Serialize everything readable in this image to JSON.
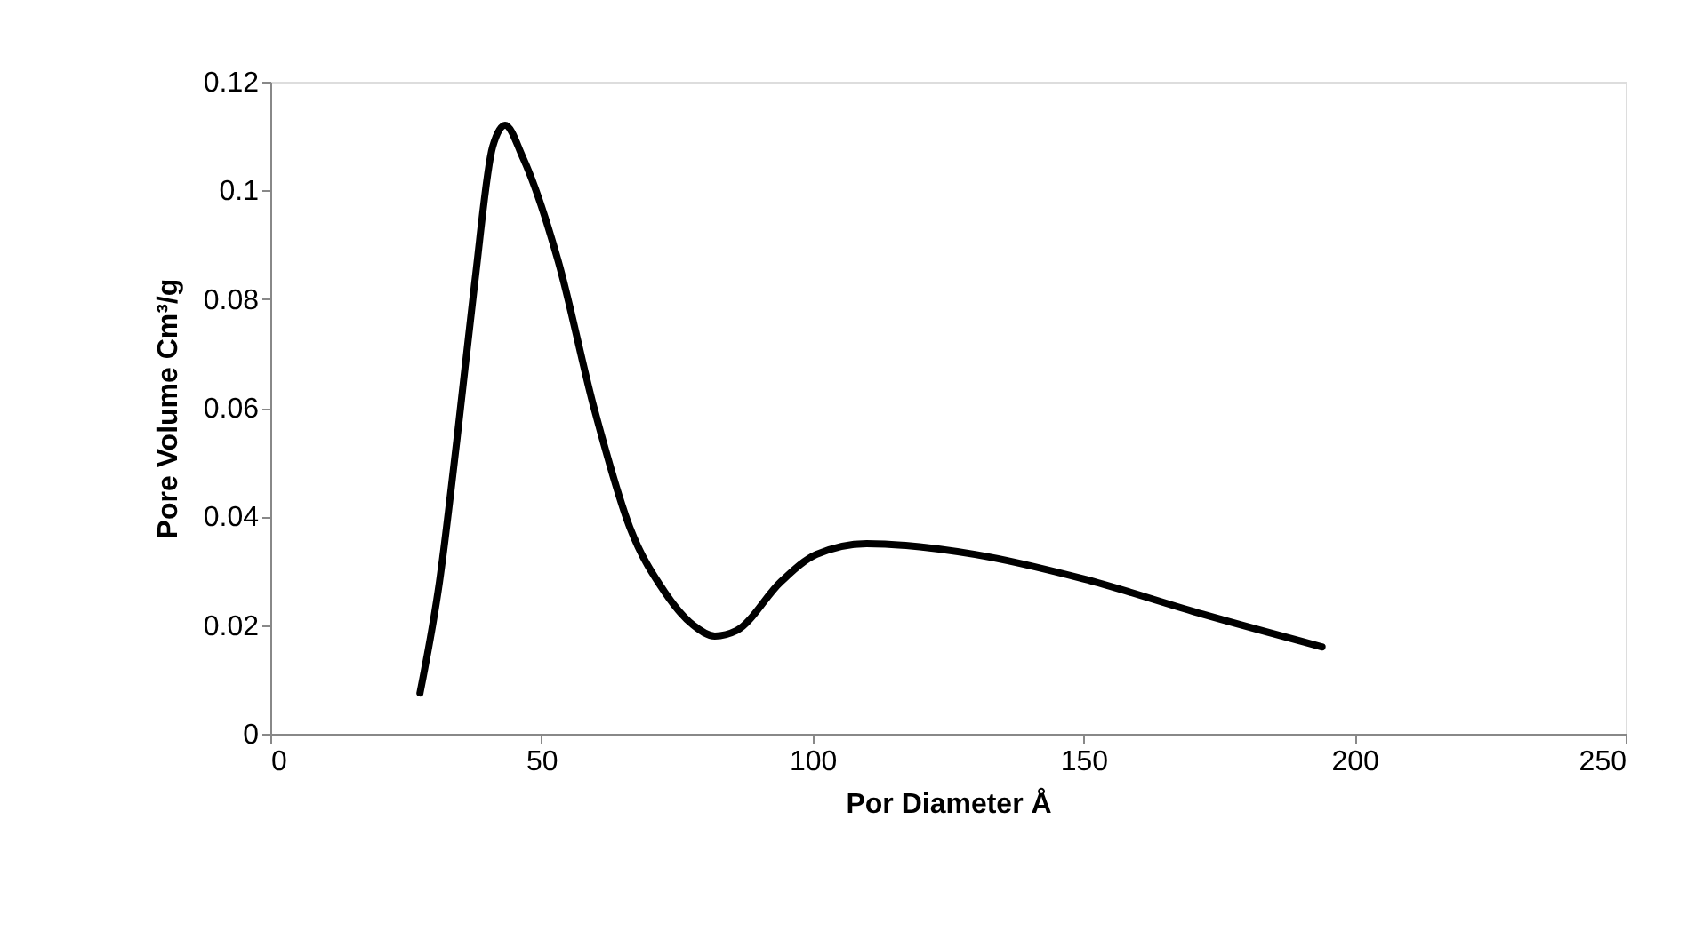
{
  "chart_data": {
    "type": "line",
    "xlabel": "Por Diameter Å",
    "ylabel": "Pore Volume Cm³/g",
    "x": [
      27.6,
      31.2,
      34.4,
      37.7,
      41,
      43.3,
      46.6,
      53.1,
      59.7,
      66.3,
      72.8,
      78,
      82,
      86,
      94.2,
      100.7,
      110,
      130,
      150,
      172,
      194
    ],
    "series": [
      {
        "color": "#000000",
        "values": [
          0.0075,
          0.028,
          0.054,
          0.083,
          0.108,
          0.112,
          0.106,
          0.087,
          0.06,
          0.038,
          0.026,
          0.02,
          0.018,
          0.019,
          0.028,
          0.033,
          0.035,
          0.033,
          0.0285,
          0.022,
          0.016
        ]
      }
    ],
    "xlim": [
      0,
      250
    ],
    "xticks": [
      0,
      50,
      100,
      150,
      200,
      250
    ],
    "ylim": [
      0,
      0.12
    ],
    "yticks": [
      0,
      0.02,
      0.04,
      0.06,
      0.08,
      0.1,
      0.12
    ],
    "grid": false,
    "marker": "none",
    "line_style": "solid"
  }
}
